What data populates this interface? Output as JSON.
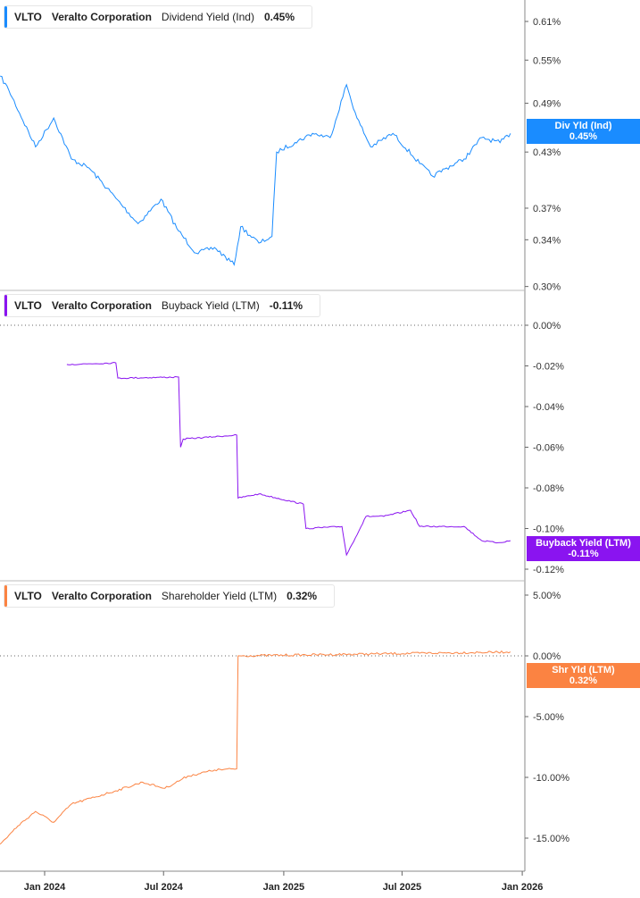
{
  "chart_data": [
    {
      "type": "line",
      "ticker": "VLTO",
      "company": "Veralto Corporation",
      "metric": "Dividend Yield (Ind)",
      "current": "0.45%",
      "tag_label": "Div Yld (Ind)",
      "color": "#1a8cff",
      "yscale": "log",
      "ylim": [
        0.295,
        0.63
      ],
      "yticks": [
        "0.61%",
        "0.55%",
        "0.49%",
        "0.43%",
        "0.37%",
        "0.34%",
        "0.30%"
      ],
      "ytick_values": [
        0.61,
        0.55,
        0.49,
        0.43,
        0.37,
        0.34,
        0.3
      ],
      "x": [
        "2023-10-25",
        "2023-11-07",
        "2023-12-18",
        "2024-01-15",
        "2024-02-11",
        "2024-03-09",
        "2024-04-19",
        "2024-05-23",
        "2024-06-27",
        "2024-07-24",
        "2024-08-20",
        "2024-09-17",
        "2024-10-17",
        "2024-10-27",
        "2024-11-24",
        "2024-12-14",
        "2024-12-21",
        "2025-01-18",
        "2025-02-14",
        "2025-03-13",
        "2025-04-07",
        "2025-04-23",
        "2025-05-14",
        "2025-06-17",
        "2025-07-28",
        "2025-08-17",
        "2025-09-07",
        "2025-10-04",
        "2025-10-31",
        "2025-11-28",
        "2025-12-14"
      ],
      "y": [
        0.527,
        0.508,
        0.436,
        0.471,
        0.422,
        0.412,
        0.38,
        0.355,
        0.379,
        0.348,
        0.328,
        0.333,
        0.318,
        0.352,
        0.337,
        0.343,
        0.43,
        0.441,
        0.452,
        0.447,
        0.515,
        0.471,
        0.436,
        0.452,
        0.417,
        0.403,
        0.412,
        0.422,
        0.447,
        0.441,
        0.452
      ]
    },
    {
      "type": "line",
      "ticker": "VLTO",
      "company": "Veralto Corporation",
      "metric": "Buyback Yield (LTM)",
      "current": "-0.11%",
      "tag_label": "Buyback Yield (LTM)",
      "color": "#8a14f0",
      "yscale": "linear",
      "ylim": [
        -0.127,
        0.0
      ],
      "yticks": [
        "0.00%",
        "-0.02%",
        "-0.04%",
        "-0.06%",
        "-0.08%",
        "-0.10%",
        "-0.12%"
      ],
      "ytick_values": [
        0,
        -0.02,
        -0.04,
        -0.06,
        -0.08,
        -0.1,
        -0.12
      ],
      "x": [
        "2024-02-04",
        "2024-04-19",
        "2024-04-22",
        "2024-07-24",
        "2024-07-27",
        "2024-07-31",
        "2024-10-21",
        "2024-10-23",
        "2024-11-24",
        "2025-01-31",
        "2025-02-04",
        "2025-03-31",
        "2025-04-07",
        "2025-05-07",
        "2025-06-03",
        "2025-07-14",
        "2025-07-28",
        "2025-10-04",
        "2025-10-31",
        "2025-11-25",
        "2025-12-14"
      ],
      "y": [
        -0.0193,
        -0.0185,
        -0.026,
        -0.0255,
        -0.06,
        -0.056,
        -0.054,
        -0.085,
        -0.083,
        -0.088,
        -0.1,
        -0.099,
        -0.113,
        -0.094,
        -0.094,
        -0.091,
        -0.099,
        -0.099,
        -0.106,
        -0.107,
        -0.106
      ]
    },
    {
      "type": "line",
      "ticker": "VLTO",
      "company": "Veralto Corporation",
      "metric": "Shareholder Yield (LTM)",
      "current": "0.32%",
      "tag_label": "Shr Yld (LTM)",
      "color": "#fb8342",
      "yscale": "linear",
      "ylim": [
        -17,
        7
      ],
      "yticks": [
        "5.00%",
        "0.00%",
        "-5.00%",
        "-10.00%",
        "-15.00%"
      ],
      "ytick_values": [
        5,
        0,
        -5,
        -10,
        -15
      ],
      "x": [
        "2023-10-25",
        "2023-11-21",
        "2023-12-18",
        "2024-01-15",
        "2024-02-11",
        "2024-04-19",
        "2024-05-30",
        "2024-07-03",
        "2024-08-07",
        "2024-09-17",
        "2024-10-21",
        "2024-10-23",
        "2025-12-14"
      ],
      "y": [
        -15.5,
        -14.0,
        -12.8,
        -13.7,
        -12.2,
        -11.1,
        -10.4,
        -10.9,
        -9.9,
        -9.4,
        -9.3,
        0.0,
        0.32
      ]
    }
  ],
  "x_axis": {
    "ticks": [
      "Jan 2024",
      "Jul 2024",
      "Jan 2025",
      "Jul 2025",
      "Jan 2026"
    ],
    "tick_dates": [
      "2024-01-01",
      "2024-07-01",
      "2025-01-01",
      "2025-07-01",
      "2026-01-01"
    ]
  }
}
